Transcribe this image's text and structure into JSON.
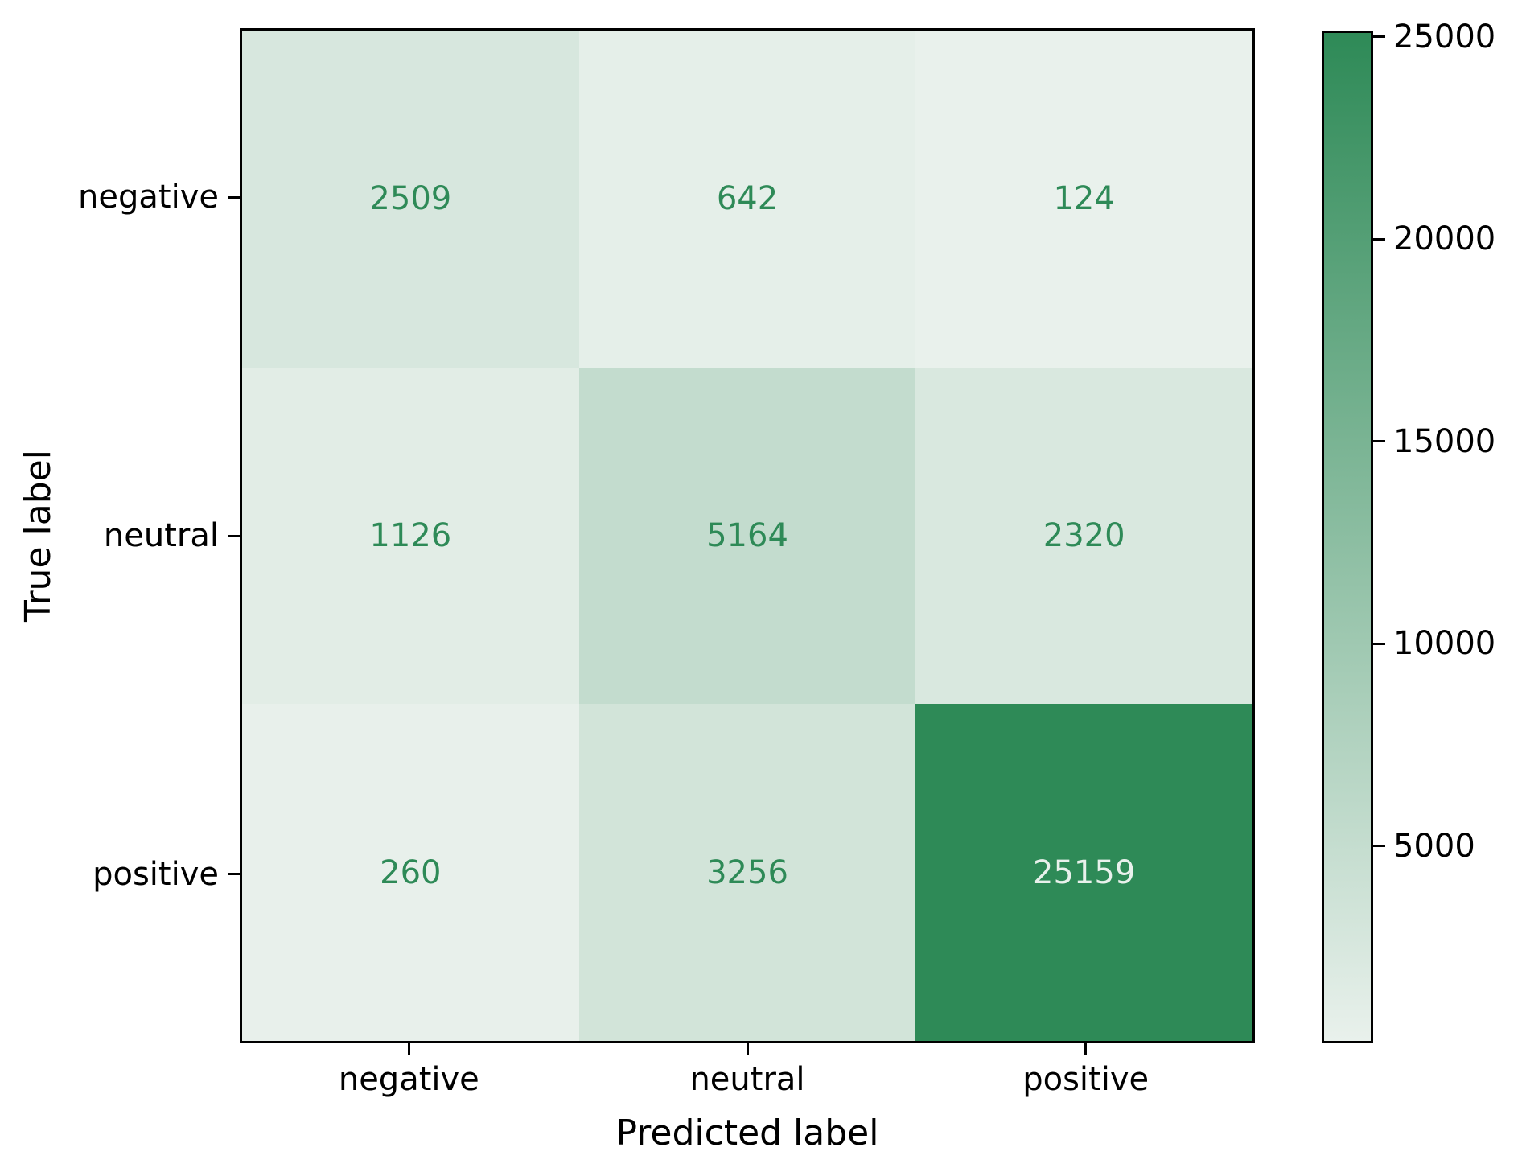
{
  "figure": {
    "background": "#ffffff",
    "spine_color": "#000000"
  },
  "chart_data": {
    "type": "heatmap",
    "title": "",
    "xlabel": "Predicted label",
    "ylabel": "True label",
    "x_tick_labels": [
      "negative",
      "neutral",
      "positive"
    ],
    "y_tick_labels": [
      "negative",
      "neutral",
      "positive"
    ],
    "rows": [
      {
        "label": "negative",
        "values": [
          2509,
          642,
          124
        ]
      },
      {
        "label": "neutral",
        "values": [
          1126,
          5164,
          2320
        ]
      },
      {
        "label": "positive",
        "values": [
          260,
          3256,
          25159
        ]
      }
    ],
    "vmin": 124,
    "vmax": 25159,
    "colormap": {
      "name": "white-to-seagreen",
      "min_color": "#e9f1ec",
      "max_color": "#2e8a57"
    },
    "annotation_color_light_cells": "#2e8a57",
    "annotation_color_dark_cells": "#e9f1ec",
    "colorbar": {
      "position": "right",
      "tick_values": [
        5000,
        10000,
        15000,
        20000,
        25000
      ],
      "tick_labels": [
        "5000",
        "10000",
        "15000",
        "20000",
        "25000"
      ]
    },
    "grid": false,
    "legend_position": "none"
  }
}
